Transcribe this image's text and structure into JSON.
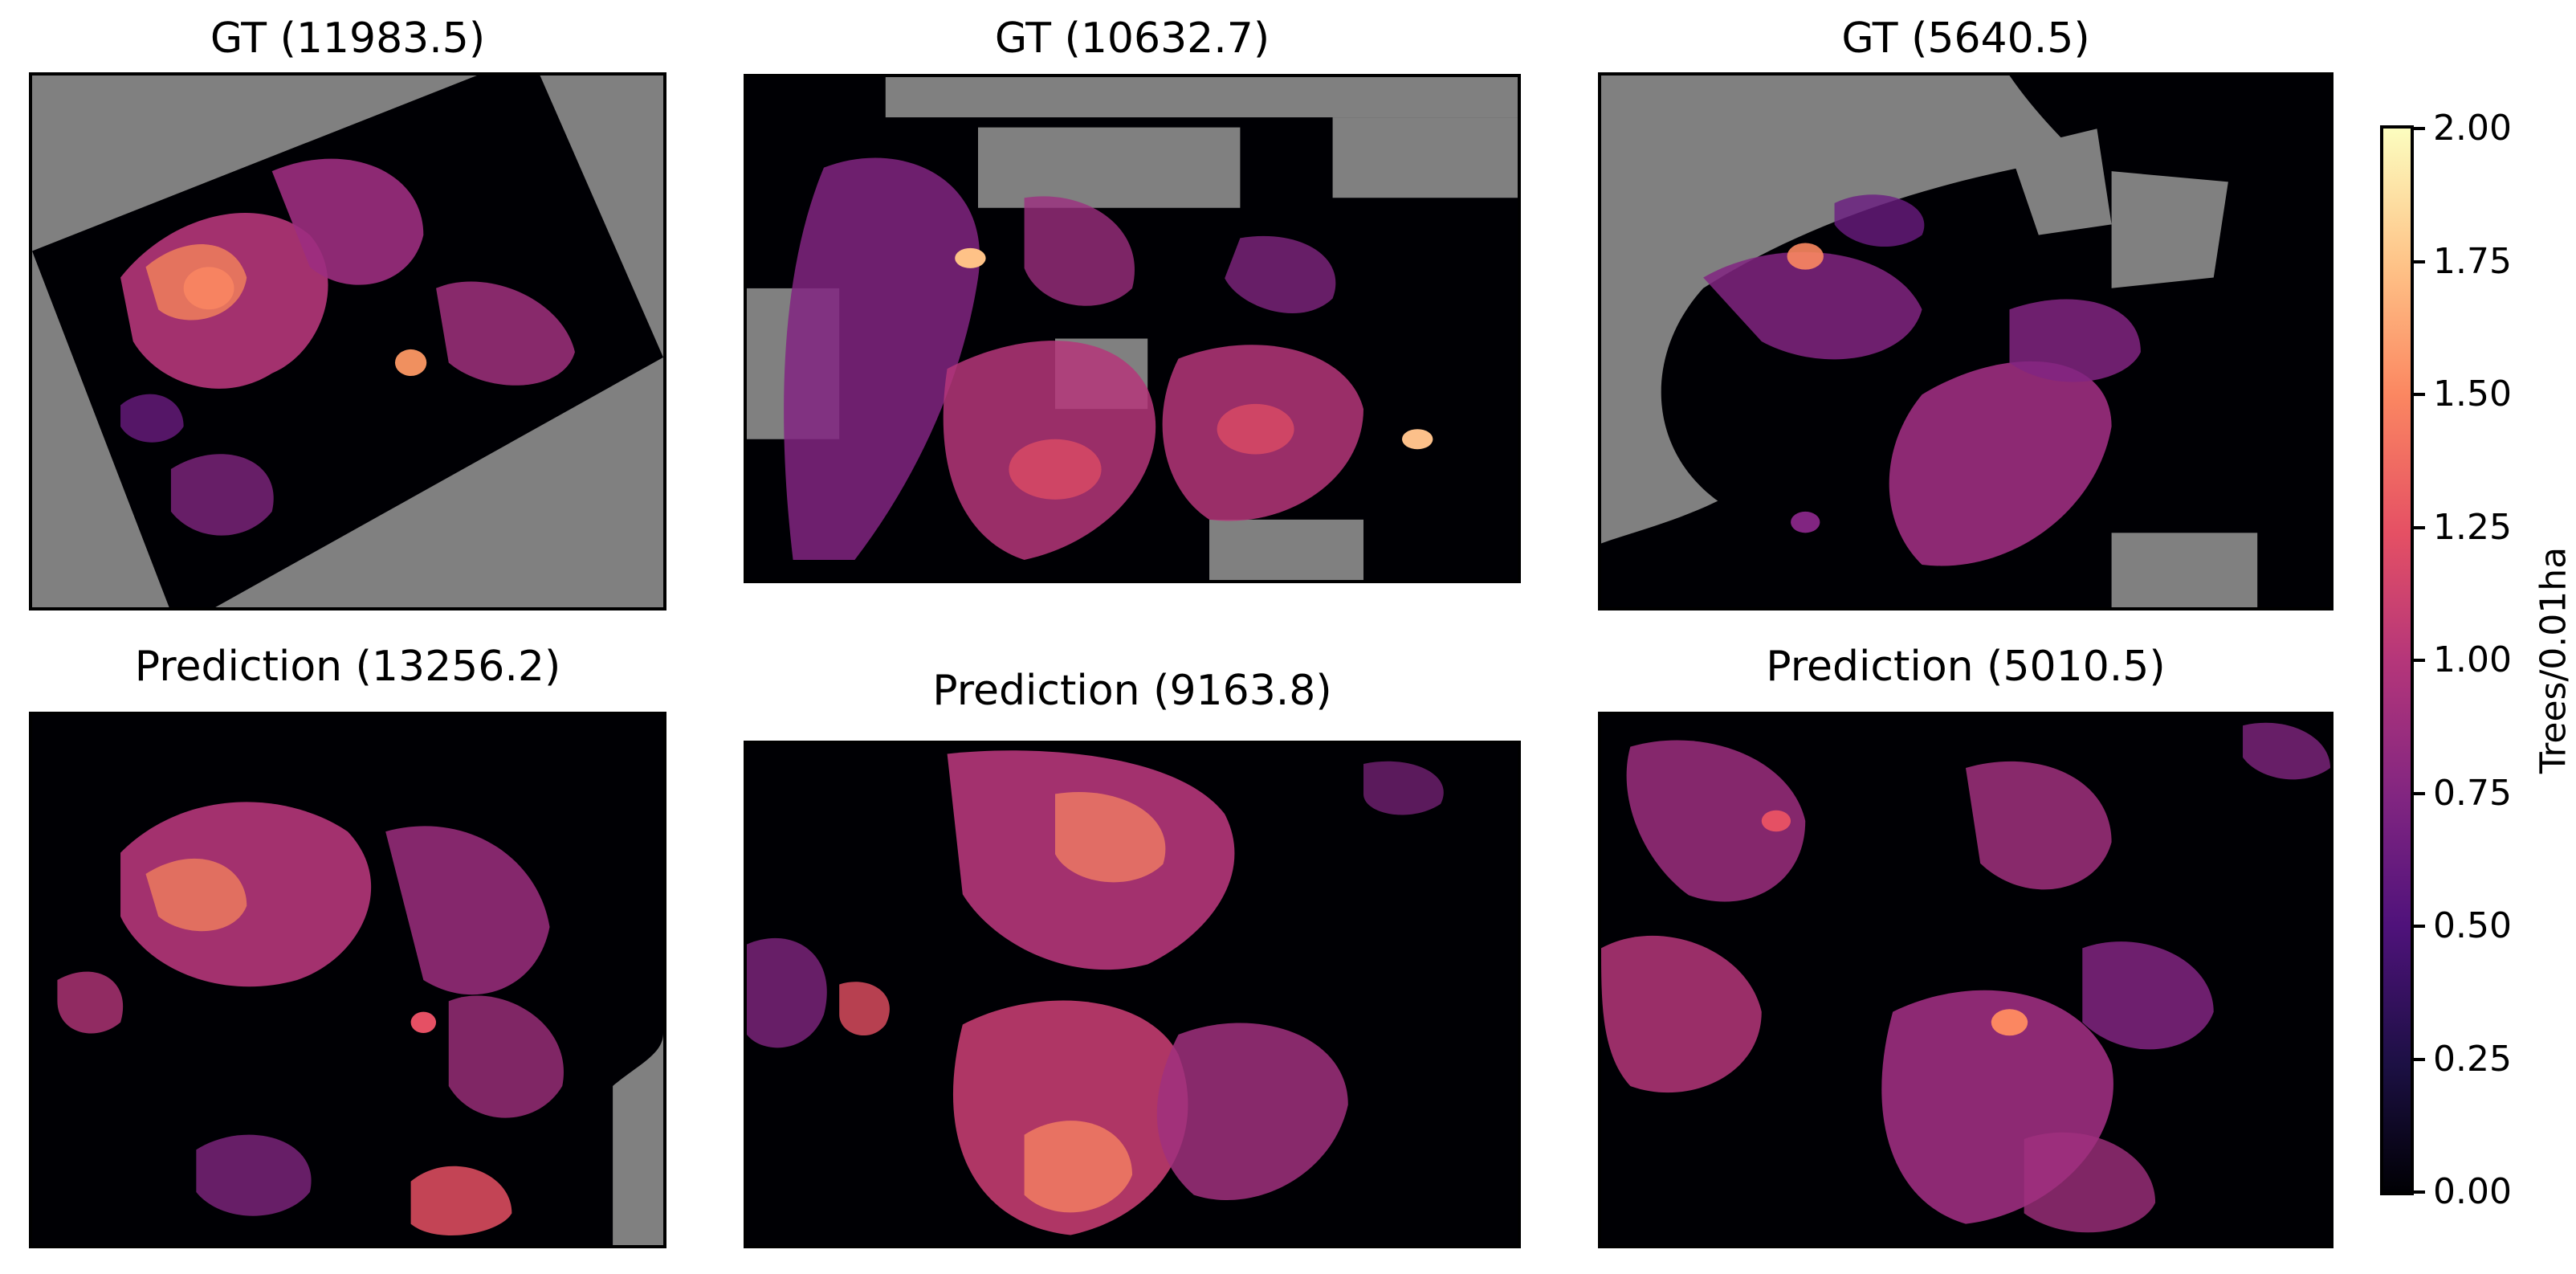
{
  "panels": [
    {
      "title": "GT (11983.5)"
    },
    {
      "title": "GT (10632.7)"
    },
    {
      "title": "GT (5640.5)"
    },
    {
      "title": "Prediction (13256.2)"
    },
    {
      "title": "Prediction (9163.8)"
    },
    {
      "title": "Prediction (5010.5)"
    }
  ],
  "colorbar": {
    "label": "Trees/0.01ha",
    "colormap": "magma",
    "min": 0.0,
    "max": 2.0,
    "ticks": [
      "0.00",
      "0.25",
      "0.50",
      "0.75",
      "1.00",
      "1.25",
      "1.50",
      "1.75",
      "2.00"
    ]
  },
  "colors": {
    "no_data": "#808080",
    "background": "#000000"
  }
}
